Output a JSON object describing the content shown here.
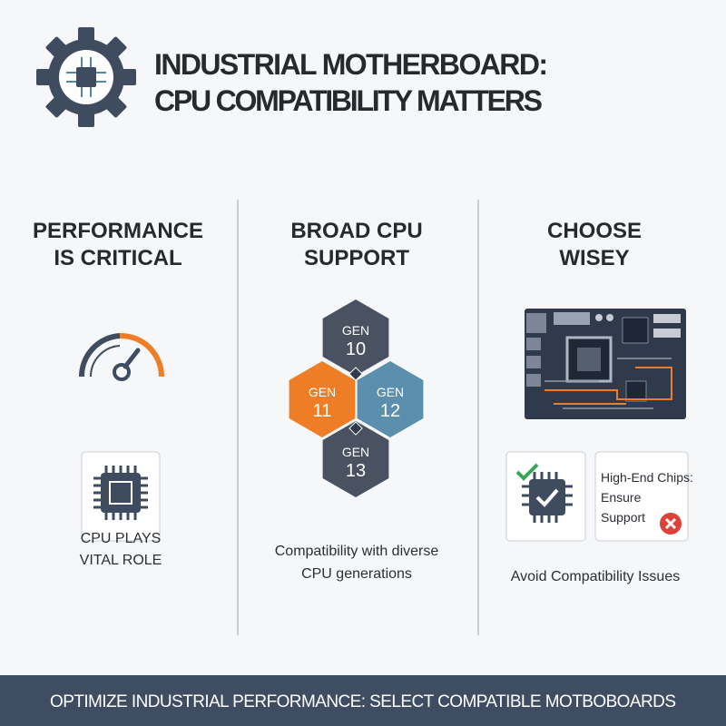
{
  "header": {
    "title": [
      "INDUSTRIAL MOTHERBOARD:",
      "CPU COMPATIBILITY MATTERS"
    ]
  },
  "columns": [
    {
      "heading": [
        "PERFORMANCE",
        "IS CRITICAL"
      ],
      "caption": [
        "CPU PLAYS",
        "VITAL ROLE"
      ]
    },
    {
      "heading": [
        "BROAD CPU",
        "SUPPORT"
      ],
      "hexes": [
        {
          "label": "GEN",
          "number": "10"
        },
        {
          "label": "GEN",
          "number": "11"
        },
        {
          "label": "GEN",
          "number": "12"
        },
        {
          "label": "GEN",
          "number": "13"
        }
      ],
      "caption": [
        "Compatibility with diverse",
        "CPU generations"
      ]
    },
    {
      "heading": [
        "CHOOSE",
        "WISEY"
      ],
      "card": [
        "High-End Chips:",
        "Ensure",
        "Support"
      ],
      "caption": [
        "Avoid Compatibility Issues"
      ]
    }
  ],
  "footer": {
    "text": "OPTIMIZE INDUSTRIAL PERFORMANCE: SELECT COMPATIBLE MOTBOBOARDS"
  }
}
